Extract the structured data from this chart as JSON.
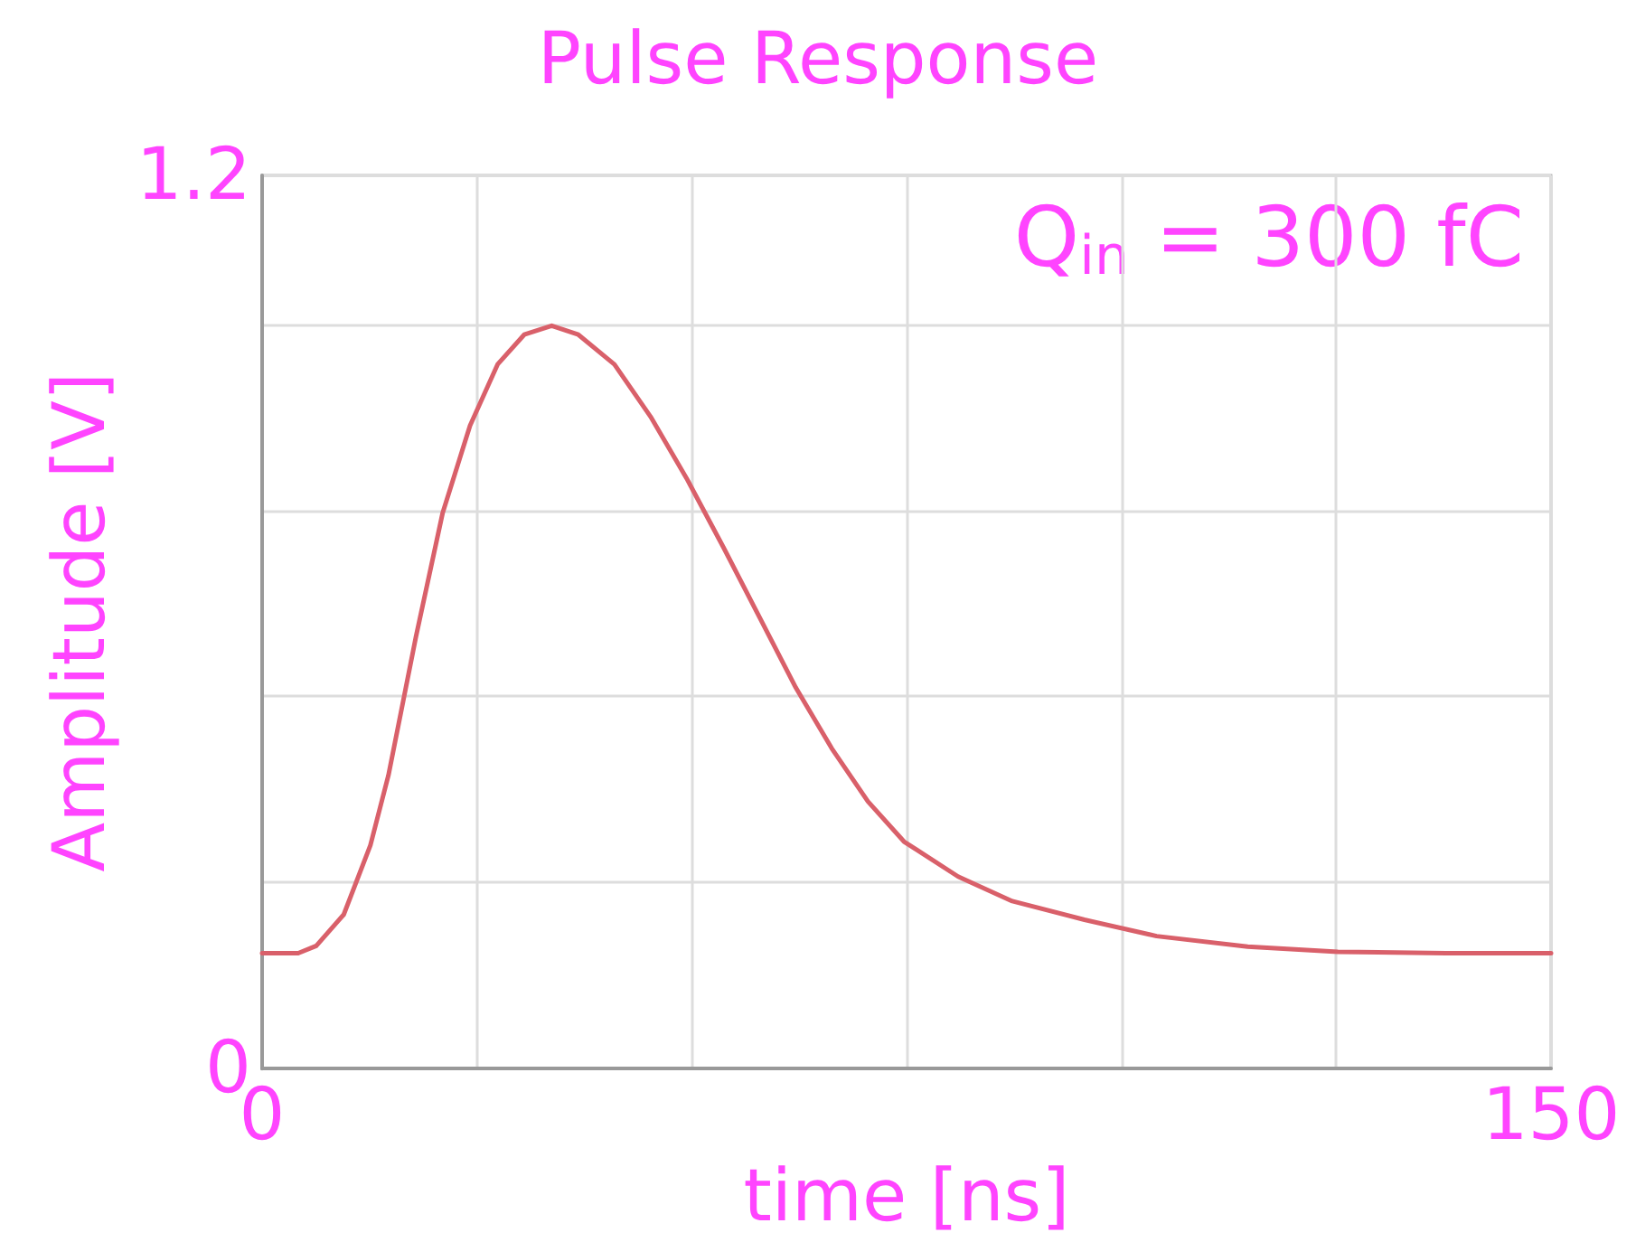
{
  "chart_data": {
    "type": "line",
    "title": "Pulse Response",
    "xlabel": "time [ns]",
    "ylabel": "Amplitude [V]",
    "annotations": [
      "Q$_{in}$ = 300 fC"
    ],
    "x": [
      0,
      4.2,
      6.3,
      9.5,
      12.6,
      14.7,
      17.9,
      21,
      24.2,
      27.4,
      30.5,
      33.7,
      36.8,
      41,
      45.2,
      49.4,
      53.7,
      57.9,
      62.1,
      66.3,
      70.5,
      74.7,
      81,
      87.3,
      95.7,
      104.1,
      114.7,
      125.2,
      137.8,
      150
    ],
    "series": [
      {
        "color": "#d9606a",
        "values": [
          0.155,
          0.155,
          0.165,
          0.207,
          0.3,
          0.394,
          0.58,
          0.746,
          0.864,
          0.946,
          0.986,
          0.998,
          0.986,
          0.946,
          0.876,
          0.793,
          0.7,
          0.606,
          0.512,
          0.43,
          0.359,
          0.305,
          0.258,
          0.225,
          0.2,
          0.178,
          0.164,
          0.157,
          0.155,
          0.155
        ]
      }
    ],
    "xlim": [
      0,
      150
    ],
    "ylim": [
      0,
      1.2
    ],
    "xticks": [
      0,
      {
        "value": 25,
        "label": null
      },
      {
        "value": 50,
        "label": null
      },
      {
        "value": 75,
        "label": null
      },
      {
        "value": 100,
        "label": null
      },
      {
        "value": 125,
        "label": null
      },
      150
    ],
    "yticks": [
      0,
      {
        "value": 0.25,
        "label": null
      },
      {
        "value": 0.5,
        "label": null
      },
      {
        "value": 0.75,
        "label": null
      },
      {
        "value": 1,
        "label": null
      },
      1.2
    ],
    "grid": true,
    "marker": "none",
    "line_style": "solid"
  }
}
